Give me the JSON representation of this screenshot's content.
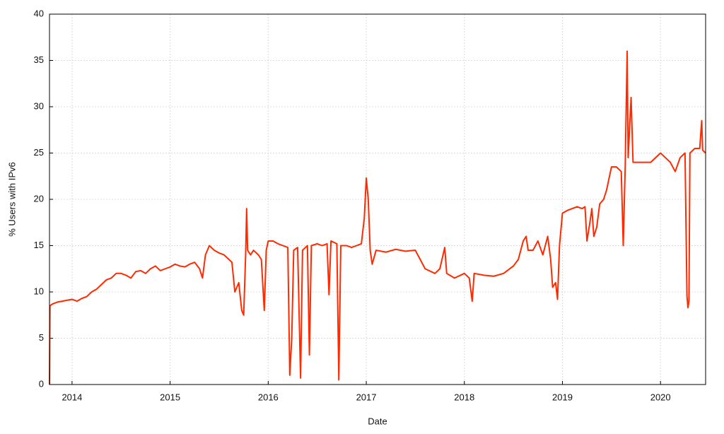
{
  "chart_data": {
    "type": "line",
    "x_label": "Date",
    "y_label": "% Users with IPv6",
    "xlim": [
      2013.77,
      2020.46
    ],
    "xticks": [
      2014,
      2015,
      2016,
      2017,
      2018,
      2019,
      2020
    ],
    "ylim": [
      0,
      40
    ],
    "yticks": [
      0,
      5,
      10,
      15,
      20,
      25,
      30,
      35,
      40
    ],
    "grid": true,
    "series": [
      {
        "color": "#ff2a00",
        "x": [
          2013.77,
          2013.775,
          2013.8,
          2013.85,
          2013.9,
          2013.95,
          2014.0,
          2014.05,
          2014.1,
          2014.15,
          2014.2,
          2014.25,
          2014.3,
          2014.35,
          2014.4,
          2014.45,
          2014.5,
          2014.55,
          2014.6,
          2014.65,
          2014.7,
          2014.75,
          2014.8,
          2014.85,
          2014.9,
          2014.95,
          2015.0,
          2015.05,
          2015.1,
          2015.15,
          2015.2,
          2015.25,
          2015.3,
          2015.33,
          2015.36,
          2015.4,
          2015.45,
          2015.5,
          2015.55,
          2015.6,
          2015.63,
          2015.66,
          2015.7,
          2015.73,
          2015.75,
          2015.77,
          2015.78,
          2015.79,
          2015.82,
          2015.85,
          2015.9,
          2015.93,
          2015.96,
          2015.98,
          2016.0,
          2016.05,
          2016.1,
          2016.15,
          2016.2,
          2016.22,
          2016.24,
          2016.26,
          2016.3,
          2016.33,
          2016.35,
          2016.4,
          2016.42,
          2016.44,
          2016.5,
          2016.55,
          2016.6,
          2016.62,
          2016.64,
          2016.7,
          2016.72,
          2016.74,
          2016.8,
          2016.85,
          2016.9,
          2016.95,
          2016.98,
          2017.0,
          2017.02,
          2017.04,
          2017.06,
          2017.1,
          2017.2,
          2017.3,
          2017.4,
          2017.5,
          2017.55,
          2017.6,
          2017.7,
          2017.75,
          2017.8,
          2017.82,
          2017.9,
          2018.0,
          2018.05,
          2018.08,
          2018.1,
          2018.2,
          2018.3,
          2018.4,
          2018.5,
          2018.55,
          2018.6,
          2018.63,
          2018.65,
          2018.7,
          2018.75,
          2018.8,
          2018.85,
          2018.88,
          2018.9,
          2018.93,
          2018.95,
          2018.97,
          2019.0,
          2019.05,
          2019.1,
          2019.15,
          2019.2,
          2019.23,
          2019.25,
          2019.28,
          2019.3,
          2019.32,
          2019.35,
          2019.38,
          2019.42,
          2019.45,
          2019.5,
          2019.55,
          2019.6,
          2019.62,
          2019.64,
          2019.66,
          2019.67,
          2019.7,
          2019.72,
          2019.8,
          2019.9,
          2020.0,
          2020.05,
          2020.1,
          2020.15,
          2020.2,
          2020.25,
          2020.27,
          2020.28,
          2020.29,
          2020.3,
          2020.35,
          2020.4,
          2020.42,
          2020.43,
          2020.46
        ],
        "values": [
          0,
          8.5,
          8.7,
          8.9,
          9.0,
          9.1,
          9.2,
          9.0,
          9.3,
          9.5,
          10.0,
          10.3,
          10.8,
          11.3,
          11.5,
          12.0,
          12.0,
          11.8,
          11.5,
          12.2,
          12.3,
          12.0,
          12.5,
          12.8,
          12.3,
          12.5,
          12.7,
          13.0,
          12.8,
          12.7,
          13.0,
          13.2,
          12.5,
          11.5,
          14.0,
          15.0,
          14.5,
          14.2,
          14.0,
          13.5,
          13.2,
          10.0,
          11.0,
          8.0,
          7.5,
          14.0,
          19.0,
          14.5,
          14.0,
          14.5,
          14.0,
          13.5,
          8.0,
          14.5,
          15.5,
          15.5,
          15.2,
          15.0,
          14.8,
          1.0,
          5.0,
          14.5,
          14.8,
          0.7,
          14.5,
          15.0,
          3.2,
          15.0,
          15.2,
          15.0,
          15.2,
          9.7,
          15.5,
          15.2,
          0.5,
          15.0,
          15.0,
          14.8,
          15.0,
          15.2,
          18.0,
          22.3,
          20.0,
          14.5,
          13.0,
          14.5,
          14.3,
          14.6,
          14.4,
          14.5,
          13.5,
          12.5,
          12.0,
          12.5,
          14.8,
          12.0,
          11.5,
          12.0,
          11.5,
          9.0,
          12.0,
          11.8,
          11.7,
          12.0,
          12.8,
          13.5,
          15.5,
          16.0,
          14.5,
          14.5,
          15.5,
          14.0,
          16.0,
          13.5,
          10.5,
          11.0,
          9.2,
          15.0,
          18.5,
          18.8,
          19.0,
          19.2,
          19.0,
          19.2,
          15.5,
          17.5,
          19.0,
          16.0,
          17.0,
          19.5,
          20.0,
          21.0,
          23.5,
          23.5,
          23.0,
          15.0,
          23.5,
          36.0,
          24.5,
          31.0,
          24.0,
          24.0,
          24.0,
          25.0,
          24.5,
          24.0,
          23.0,
          24.5,
          25.0,
          9.5,
          8.3,
          9.0,
          25.0,
          25.5,
          25.5,
          28.5,
          25.3,
          25.0
        ]
      }
    ]
  }
}
